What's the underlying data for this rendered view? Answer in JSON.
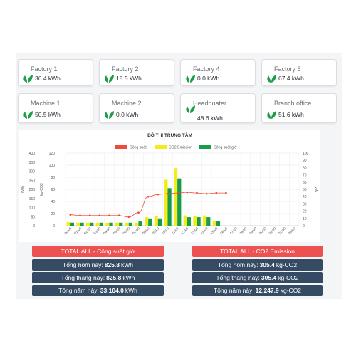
{
  "cards": [
    {
      "name": "Factory 1",
      "value": "36.4 kWh"
    },
    {
      "name": "Factory 2",
      "value": "18.5 kWh"
    },
    {
      "name": "Factory 4",
      "value": "0.0 kWh"
    },
    {
      "name": "Factory 5",
      "value": "67.4 kWh"
    },
    {
      "name": "Machine 1",
      "value": "50.5 kWh"
    },
    {
      "name": "Machine 2",
      "value": "0.0 kWh"
    },
    {
      "name": "Headquater",
      "value": "48.6 kWh"
    },
    {
      "name": "Branch office",
      "value": "51.6 kWh"
    }
  ],
  "chart_data": {
    "type": "bar",
    "title": "ĐỒ THỊ TRUNG TÂM",
    "left_axis_title": "kWh",
    "middle_axis_title": "kg-CO2",
    "right_axis_title": "kW",
    "left_ticks": [
      "400",
      "350",
      "300",
      "250",
      "200",
      "150",
      "100",
      "50",
      "0"
    ],
    "middle_ticks": [
      "120",
      "100",
      "80",
      "60",
      "40",
      "20",
      "0"
    ],
    "right_ticks": [
      "100",
      "90",
      "80",
      "70",
      "60",
      "50",
      "40",
      "30",
      "20",
      "10",
      "0"
    ],
    "categories": [
      "00:00",
      "01:00",
      "02:00",
      "03:00",
      "04:00",
      "05:00",
      "06:00",
      "07:00",
      "08:00",
      "09:00",
      "10:00",
      "11:00",
      "12:00",
      "13:00",
      "14:00",
      "15:00",
      "16:00",
      "17:00",
      "18:00",
      "19:00",
      "20:00",
      "21:00",
      "22:00",
      "23:00"
    ],
    "ylim_kgco2": [
      0,
      120
    ],
    "ylim_kw": [
      0,
      100
    ],
    "legend_position": "top",
    "colors": {
      "line": "#ee4b3b",
      "co2": "#f2ec1c",
      "bar": "#169c4c"
    },
    "series": [
      {
        "name": "Công suất",
        "type": "line",
        "axis": "kW",
        "values": [
          15,
          14,
          14,
          14,
          14,
          14,
          12,
          18,
          40,
          43,
          44,
          45,
          46,
          45,
          44,
          45,
          45,
          null,
          null,
          null,
          null,
          null,
          null,
          null
        ]
      },
      {
        "name": "CO2 Emission",
        "type": "bar",
        "axis": "kg-CO2",
        "values": [
          6,
          5,
          5,
          5,
          5,
          5,
          5,
          5,
          14,
          16,
          76,
          95,
          17,
          16,
          17,
          8,
          null,
          null,
          null,
          null,
          null,
          null,
          null,
          null
        ]
      },
      {
        "name": "Công suất giờ",
        "type": "bar",
        "axis": "kg-CO2",
        "values": [
          5,
          5,
          5,
          5,
          5,
          5,
          5,
          7,
          12,
          12,
          62,
          78,
          14,
          14,
          14,
          7,
          null,
          null,
          null,
          null,
          null,
          null,
          null,
          null
        ]
      }
    ]
  },
  "totals": {
    "power": {
      "header": "TOTAL ALL - Công suất giờ",
      "today_label": "Tổng hôm nay:",
      "today_value": "825.8",
      "today_unit": "kWh",
      "month_label": "Tổng tháng này:",
      "month_value": "825.8",
      "month_unit": "kWh",
      "year_label": "Tổng năm này:",
      "year_value": "33,104.0",
      "year_unit": "kWh"
    },
    "co2": {
      "header": "TOTAL ALL - CO2 Emission",
      "today_label": "Tổng hôm nay:",
      "today_value": "305.4",
      "today_unit": "kg-CO2",
      "month_label": "Tổng tháng này:",
      "month_value": "305.4",
      "month_unit": "kg-CO2",
      "year_label": "Tổng năm này:",
      "year_value": "12,247.9",
      "year_unit": "kg-CO2"
    }
  }
}
